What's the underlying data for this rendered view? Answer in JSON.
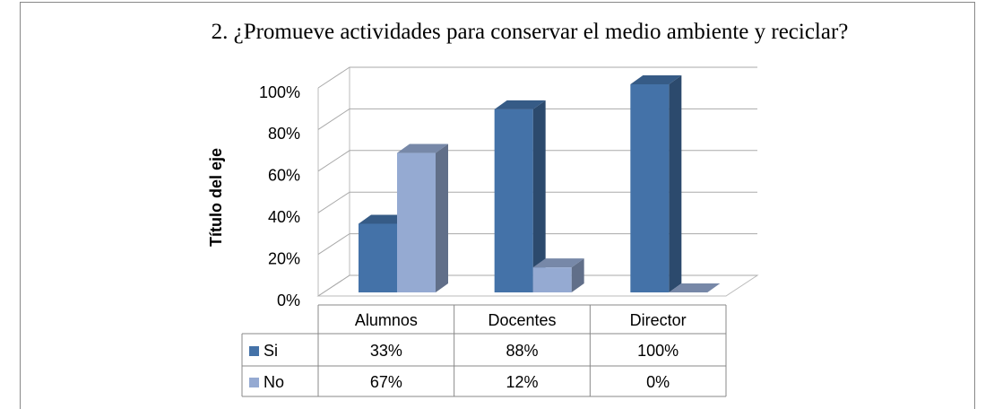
{
  "chart_data": {
    "type": "bar3d",
    "title": "2. ¿Promueve actividades para conservar el medio ambiente y reciclar?",
    "y_label": "Título del eje",
    "categories": [
      "Alumnos",
      "Docentes",
      "Director"
    ],
    "series": [
      {
        "name": "Si",
        "color": "#4472a8",
        "values": [
          33,
          88,
          100
        ],
        "value_labels": [
          "33%",
          "88%",
          "100%"
        ]
      },
      {
        "name": "No",
        "color": "#95aad2",
        "values": [
          67,
          12,
          0
        ],
        "value_labels": [
          "67%",
          "12%",
          "0%"
        ]
      }
    ],
    "ylim": [
      0,
      100
    ],
    "yticks": [
      {
        "value": 0,
        "label": "0%"
      },
      {
        "value": 20,
        "label": "20%"
      },
      {
        "value": 40,
        "label": "40%"
      },
      {
        "value": 60,
        "label": "60%"
      },
      {
        "value": 80,
        "label": "80%"
      },
      {
        "value": 100,
        "label": "100%"
      }
    ],
    "grid": true,
    "data_table": true
  }
}
